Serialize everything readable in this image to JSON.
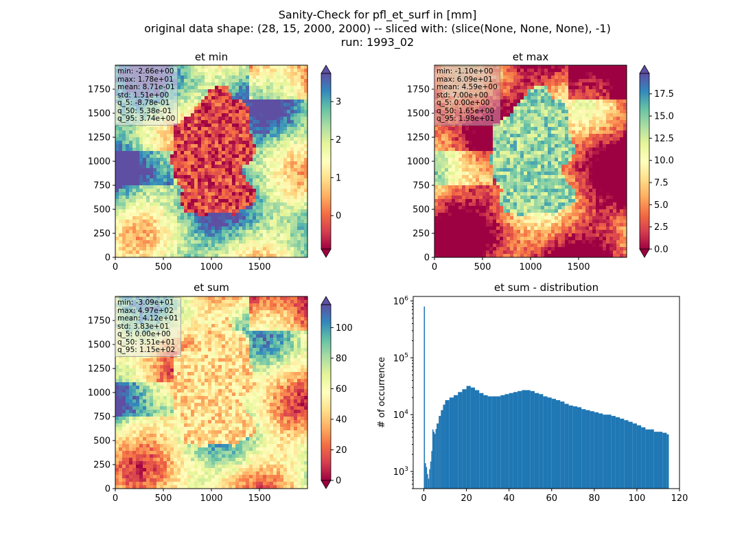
{
  "figure": {
    "title_lines": [
      "Sanity-Check for pfl_et_surf in [mm]",
      "original data shape: (28, 15, 2000, 2000) -- sliced with: (slice(None, None, None), -1)",
      "run: 1993_02"
    ]
  },
  "panels": [
    {
      "id": "et_min",
      "title": "et min",
      "stats": [
        "min: -2.66e+00",
        "max: 1.78e+01",
        "mean: 8.71e-01",
        "std: 1.51e+00",
        "q_5: -8.78e-01",
        "q_50: 5.38e-01",
        "q_95: 3.74e+00"
      ],
      "stats_style": "light",
      "x_ticks": [
        "0",
        "500",
        "1000",
        "1500"
      ],
      "y_ticks": [
        "0",
        "250",
        "500",
        "750",
        "1000",
        "1250",
        "1500",
        "1750"
      ],
      "colorbar": {
        "cmap": "Spectral",
        "range": [
          -0.88,
          3.74
        ],
        "extend": "both",
        "ticks": [
          "0",
          "1",
          "2",
          "3"
        ],
        "tick_values": [
          0,
          1,
          2,
          3
        ]
      },
      "map": {
        "inside_level": 0.12,
        "outside_base": 0.7
      }
    },
    {
      "id": "et_max",
      "title": "et max",
      "stats": [
        "min: -1.10e+00",
        "max: 6.09e+01",
        "mean: 4.59e+00",
        "std: 7.00e+00",
        "q_5: 0.00e+00",
        "q_50: 1.65e+00",
        "q_95: 1.98e+01"
      ],
      "stats_style": "dark",
      "x_ticks": [
        "0",
        "500",
        "1000",
        "1500"
      ],
      "y_ticks": [
        "0",
        "250",
        "500",
        "750",
        "1000",
        "1250",
        "1500",
        "1750"
      ],
      "colorbar": {
        "cmap": "Spectral",
        "range": [
          0,
          19.8
        ],
        "extend": "both",
        "ticks": [
          "0.0",
          "2.5",
          "5.0",
          "7.5",
          "10.0",
          "12.5",
          "15.0",
          "17.5"
        ],
        "tick_values": [
          0,
          2.5,
          5,
          7.5,
          10,
          12.5,
          15,
          17.5
        ]
      },
      "map": {
        "inside_level": 0.72,
        "outside_base": 0.15
      }
    },
    {
      "id": "et_sum",
      "title": "et sum",
      "stats": [
        "min: -3.09e+01",
        "max: 4.97e+02",
        "mean: 4.12e+01",
        "std: 3.83e+01",
        "q_5: 0.00e+00",
        "q_50: 3.51e+01",
        "q_95: 1.15e+02"
      ],
      "stats_style": "light",
      "x_ticks": [
        "0",
        "500",
        "1000",
        "1500"
      ],
      "y_ticks": [
        "0",
        "250",
        "500",
        "750",
        "1000",
        "1250",
        "1500",
        "1750"
      ],
      "colorbar": {
        "cmap": "Spectral",
        "range": [
          0,
          115
        ],
        "extend": "both",
        "ticks": [
          "0",
          "20",
          "40",
          "60",
          "80",
          "100"
        ],
        "tick_values": [
          0,
          20,
          40,
          60,
          80,
          100
        ]
      },
      "map": {
        "inside_level": 0.4,
        "outside_base": 0.5
      }
    }
  ],
  "chart_data": {
    "type": "bar",
    "title": "et sum - distribution",
    "xlabel": "",
    "ylabel": "# of occurrence",
    "yscale": "log",
    "xlim": [
      -5,
      120
    ],
    "ylim": [
      500,
      1200000
    ],
    "x_ticks": [
      "0",
      "20",
      "40",
      "60",
      "80",
      "100",
      "120"
    ],
    "y_ticks": [
      "10^3",
      "10^4",
      "10^5",
      "10^6"
    ],
    "color": "#1f77b4",
    "bins": [
      [
        0.0,
        800000
      ],
      [
        0.5,
        1400
      ],
      [
        1.0,
        1200
      ],
      [
        1.5,
        900
      ],
      [
        2.0,
        750
      ],
      [
        2.5,
        1100
      ],
      [
        3.0,
        1500
      ],
      [
        3.5,
        2300
      ],
      [
        4.0,
        5500
      ],
      [
        4.5,
        5000
      ],
      [
        5.0,
        4600
      ],
      [
        5.5,
        5600
      ],
      [
        6.0,
        7000
      ],
      [
        7.0,
        9500
      ],
      [
        8.0,
        12000
      ],
      [
        9.0,
        15000
      ],
      [
        10.0,
        18000
      ],
      [
        12.0,
        20000
      ],
      [
        14.0,
        22000
      ],
      [
        16.0,
        25000
      ],
      [
        18.0,
        28000
      ],
      [
        20.0,
        32000
      ],
      [
        22.0,
        30000
      ],
      [
        24.0,
        27000
      ],
      [
        26.0,
        24000
      ],
      [
        28.0,
        22000
      ],
      [
        30.0,
        21000
      ],
      [
        32.0,
        21000
      ],
      [
        34.0,
        21000
      ],
      [
        36.0,
        22000
      ],
      [
        38.0,
        23000
      ],
      [
        40.0,
        24000
      ],
      [
        42.0,
        25000
      ],
      [
        44.0,
        26000
      ],
      [
        46.0,
        27000
      ],
      [
        48.0,
        27000
      ],
      [
        50.0,
        26000
      ],
      [
        52.0,
        24000
      ],
      [
        54.0,
        23000
      ],
      [
        56.0,
        21000
      ],
      [
        58.0,
        20000
      ],
      [
        60.0,
        19000
      ],
      [
        62.0,
        18000
      ],
      [
        64.0,
        17000
      ],
      [
        66.0,
        15500
      ],
      [
        68.0,
        14500
      ],
      [
        70.0,
        14000
      ],
      [
        72.0,
        13500
      ],
      [
        74.0,
        12500
      ],
      [
        76.0,
        12000
      ],
      [
        78.0,
        11500
      ],
      [
        80.0,
        11000
      ],
      [
        82.0,
        10500
      ],
      [
        84.0,
        10000
      ],
      [
        86.0,
        10000
      ],
      [
        88.0,
        9500
      ],
      [
        90.0,
        9000
      ],
      [
        92.0,
        8500
      ],
      [
        94.0,
        8000
      ],
      [
        96.0,
        7500
      ],
      [
        98.0,
        7000
      ],
      [
        100.0,
        6500
      ],
      [
        102.0,
        6000
      ],
      [
        104.0,
        5500
      ],
      [
        106.0,
        5500
      ],
      [
        108.0,
        5000
      ],
      [
        110.0,
        5000
      ],
      [
        112.0,
        4800
      ],
      [
        114.0,
        4500
      ]
    ]
  }
}
